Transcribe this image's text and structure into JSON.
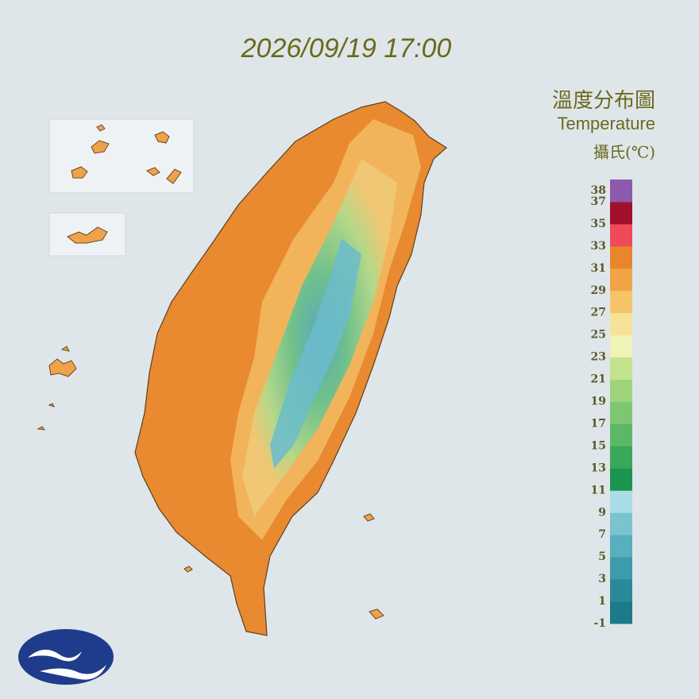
{
  "header": {
    "timestamp": "2026/09/19 17:00"
  },
  "legend": {
    "title": "溫度分布圖",
    "subtitle": "Temperature",
    "unit": "攝氏(℃)",
    "range": [
      -1,
      39
    ],
    "labels": [
      38,
      37,
      35,
      33,
      31,
      29,
      27,
      25,
      23,
      21,
      19,
      17,
      15,
      13,
      11,
      9,
      7,
      5,
      3,
      1,
      -1
    ],
    "colors": [
      "#1d7a88",
      "#2a8a99",
      "#3c9cab",
      "#58afbd",
      "#7ac3cf",
      "#a9dde6",
      "#1a9550",
      "#3aa85a",
      "#5db866",
      "#7ec671",
      "#9fd47c",
      "#c3e38c",
      "#eef3b8",
      "#f7e29a",
      "#f5c468",
      "#f0a446",
      "#e9862a",
      "#ee4a5a",
      "#a2102c",
      "#8e5ab0"
    ]
  }
}
